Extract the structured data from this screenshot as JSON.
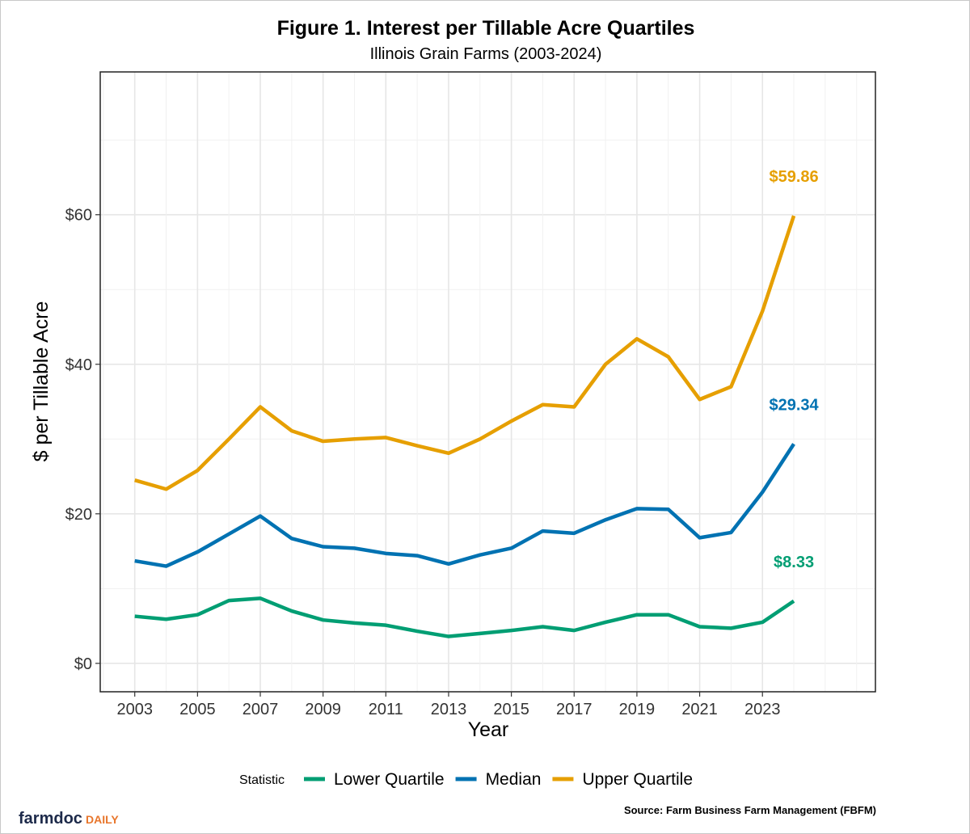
{
  "chart_data": {
    "type": "line",
    "title": "Figure 1. Interest per Tillable Acre Quartiles",
    "subtitle": "Illinois Grain Farms (2003-2024)",
    "xlabel": "Year",
    "ylabel": "$ per Tillable Acre",
    "xlim": [
      2001.9,
      2026.6
    ],
    "ylim": [
      -3.8,
      79.1
    ],
    "x_ticks": [
      2003,
      2005,
      2007,
      2009,
      2011,
      2013,
      2015,
      2017,
      2019,
      2021,
      2023
    ],
    "x_tick_labels": [
      "2003",
      "2005",
      "2007",
      "2009",
      "2011",
      "2013",
      "2015",
      "2017",
      "2019",
      "2021",
      "2023"
    ],
    "y_ticks": [
      0,
      20,
      40,
      60
    ],
    "y_tick_labels": [
      "$0",
      "$20",
      "$40",
      "$60"
    ],
    "grid": true,
    "legend_title": "Statistic",
    "legend_position": "bottom",
    "x": [
      2003,
      2004,
      2005,
      2006,
      2007,
      2008,
      2009,
      2010,
      2011,
      2012,
      2013,
      2014,
      2015,
      2016,
      2017,
      2018,
      2019,
      2020,
      2021,
      2022,
      2023,
      2024
    ],
    "series": [
      {
        "name": "Lower Quartile",
        "color": "#009E73",
        "end_label": "$8.33",
        "values": [
          6.3,
          5.9,
          6.5,
          8.4,
          8.7,
          7.0,
          5.8,
          5.4,
          5.1,
          4.3,
          3.6,
          4.0,
          4.4,
          4.9,
          4.4,
          5.5,
          6.5,
          6.5,
          4.9,
          4.7,
          5.5,
          8.33
        ]
      },
      {
        "name": "Median",
        "color": "#0072B2",
        "end_label": "$29.34",
        "values": [
          13.7,
          13.0,
          14.9,
          17.3,
          19.7,
          16.7,
          15.6,
          15.4,
          14.7,
          14.4,
          13.3,
          14.5,
          15.4,
          17.7,
          17.4,
          19.2,
          20.7,
          20.6,
          16.8,
          17.5,
          22.9,
          29.34
        ]
      },
      {
        "name": "Upper Quartile",
        "color": "#E69F00",
        "end_label": "$59.86",
        "values": [
          24.5,
          23.3,
          25.8,
          30.0,
          34.3,
          31.1,
          29.7,
          30.0,
          30.2,
          29.1,
          28.1,
          30.0,
          32.4,
          34.6,
          34.3,
          40.0,
          43.4,
          41.0,
          35.3,
          37.0,
          47.1,
          59.86
        ]
      }
    ]
  },
  "footer": {
    "source": "Source: Farm Business Farm Management (FBFM)",
    "logo_part1": "farmdoc",
    "logo_part2": "DAILY",
    "logo_colors": {
      "part1": "#1d2a4a",
      "part2": "#e8762c"
    }
  }
}
